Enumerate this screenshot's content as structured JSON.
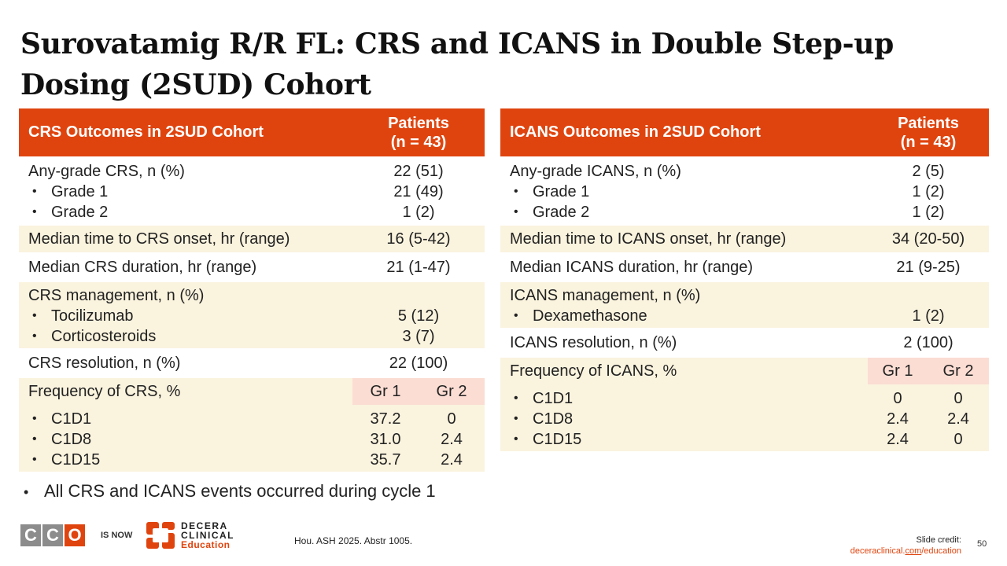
{
  "title": "Surovatamig R/R FL: CRS and ICANS in Double Step-up Dosing (2SUD) Cohort",
  "crs_table": {
    "header_label": "CRS Outcomes in 2SUD Cohort",
    "header_value_line1": "Patients",
    "header_value_line2": "(n = 43)",
    "any_grade": {
      "label": "Any-grade CRS, n (%)",
      "value": "22 (51)"
    },
    "grade1": {
      "label": "Grade 1",
      "value": "21 (49)"
    },
    "grade2": {
      "label": "Grade 2",
      "value": "1 (2)"
    },
    "median_onset": {
      "label": "Median time to CRS onset, hr (range)",
      "value": "16 (5-42)"
    },
    "median_duration": {
      "label": "Median CRS duration, hr (range)",
      "value": "21 (1-47)"
    },
    "management": {
      "label": "CRS management, n (%)"
    },
    "tocilizumab": {
      "label": "Tocilizumab",
      "value": "5 (12)"
    },
    "corticosteroids": {
      "label": "Corticosteroids",
      "value": "3 (7)"
    },
    "resolution": {
      "label": "CRS resolution, n (%)",
      "value": "22 (100)"
    },
    "frequency": {
      "label": "Frequency of CRS, %",
      "gr1": "Gr 1",
      "gr2": "Gr 2"
    },
    "cycles": [
      {
        "label": "C1D1",
        "gr1": "37.2",
        "gr2": "0"
      },
      {
        "label": "C1D8",
        "gr1": "31.0",
        "gr2": "2.4"
      },
      {
        "label": "C1D15",
        "gr1": "35.7",
        "gr2": "2.4"
      }
    ]
  },
  "icans_table": {
    "header_label": "ICANS Outcomes in 2SUD Cohort",
    "header_value_line1": "Patients",
    "header_value_line2": "(n = 43)",
    "any_grade": {
      "label": "Any-grade ICANS, n (%)",
      "value": "2 (5)"
    },
    "grade1": {
      "label": "Grade 1",
      "value": "1 (2)"
    },
    "grade2": {
      "label": "Grade 2",
      "value": "1 (2)"
    },
    "median_onset": {
      "label": "Median time to ICANS onset, hr (range)",
      "value": "34 (20-50)"
    },
    "median_duration": {
      "label": "Median ICANS duration, hr (range)",
      "value": "21 (9-25)"
    },
    "management": {
      "label": "ICANS management, n (%)"
    },
    "dexamethasone": {
      "label": "Dexamethasone",
      "value": "1 (2)"
    },
    "resolution": {
      "label": "ICANS resolution, n (%)",
      "value": "2 (100)"
    },
    "frequency": {
      "label": "Frequency of ICANS, %",
      "gr1": "Gr 1",
      "gr2": "Gr 2"
    },
    "cycles": [
      {
        "label": "C1D1",
        "gr1": "0",
        "gr2": "0"
      },
      {
        "label": "C1D8",
        "gr1": "2.4",
        "gr2": "2.4"
      },
      {
        "label": "C1D15",
        "gr1": "2.4",
        "gr2": "0"
      }
    ]
  },
  "footnote": "All CRS and ICANS events occurred during cycle 1",
  "footer": {
    "cco_letters": [
      "C",
      "C",
      "O"
    ],
    "is_now": "IS NOW",
    "decera_line1": "DECERA",
    "decera_line2": "CLINICAL",
    "decera_line3": "Education",
    "citation": "Hou. ASH 2025. Abstr 1005.",
    "slide_credit_label": "Slide credit:",
    "slide_credit_pre": "deceraclinical.",
    "slide_credit_com": "com",
    "slide_credit_post": "/education",
    "page_number": "50"
  },
  "colors": {
    "header_orange": "#E0440E",
    "row_shade": "#FAF3DE",
    "grade_header": "#FBDDD3"
  }
}
